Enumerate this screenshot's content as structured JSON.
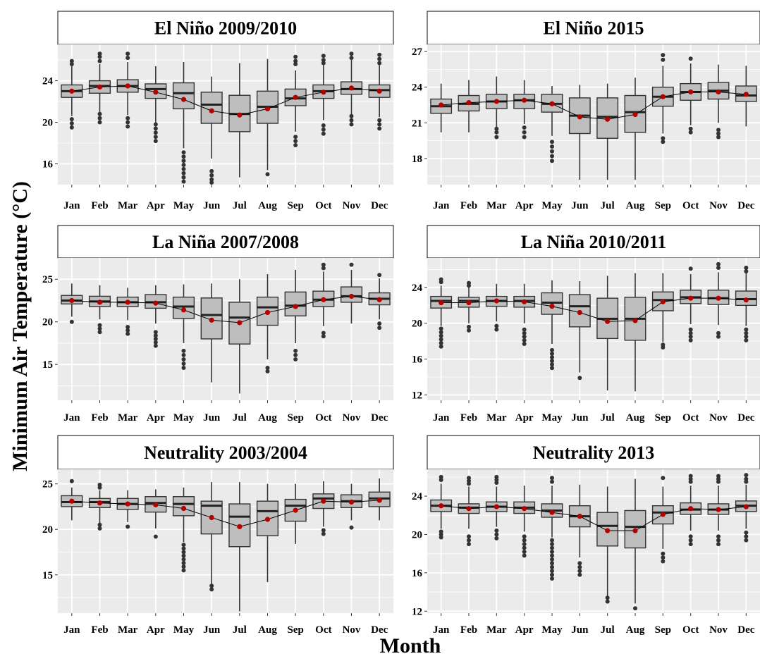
{
  "figure": {
    "ylabel": "Minimum Air Temperature (°C)",
    "xlabel": "Month",
    "colors": {
      "panel_bg": "#ebebeb",
      "grid": "#ffffff",
      "box_fill": "#bebebe",
      "box_line": "#333333",
      "mean_point": "#b30000",
      "mean_line": "#000000"
    }
  },
  "chart_data": [
    {
      "type": "box",
      "title": "El Niño 2009/2010",
      "categories": [
        "Jan",
        "Feb",
        "Mar",
        "Apr",
        "May",
        "Jun",
        "Jul",
        "Aug",
        "Sep",
        "Oct",
        "Nov",
        "Dec"
      ],
      "yticks": [
        16,
        20,
        24
      ],
      "ylim": [
        14,
        27.5
      ],
      "median": [
        23.0,
        23.5,
        23.5,
        23.2,
        22.8,
        21.7,
        20.8,
        21.5,
        22.3,
        23.0,
        23.2,
        23.1
      ],
      "q1": [
        22.4,
        22.8,
        22.9,
        22.3,
        21.3,
        19.9,
        19.1,
        19.9,
        21.6,
        22.3,
        22.7,
        22.4
      ],
      "q3": [
        23.6,
        24.0,
        24.1,
        23.7,
        23.8,
        22.9,
        22.6,
        23.0,
        23.2,
        23.6,
        23.9,
        23.6
      ],
      "whisker_low": [
        20.6,
        21.0,
        20.7,
        20.0,
        17.5,
        16.5,
        14.7,
        15.4,
        19.1,
        20.2,
        20.0,
        20.5
      ],
      "whisker_high": [
        25.4,
        25.6,
        25.8,
        25.4,
        25.8,
        24.4,
        25.7,
        26.1,
        25.0,
        25.5,
        26.0,
        25.5
      ],
      "mean": [
        23.0,
        23.4,
        23.5,
        22.9,
        22.2,
        21.1,
        20.7,
        21.3,
        22.4,
        22.9,
        23.3,
        23.0
      ],
      "outliers": [
        [
          19.5,
          19.9,
          20.3,
          25.6,
          25.9
        ],
        [
          20.0,
          20.4,
          20.8,
          25.9,
          26.3,
          26.6
        ],
        [
          19.6,
          20.0,
          20.4,
          26.2,
          26.6
        ],
        [
          18.2,
          18.6,
          19.0,
          19.4,
          19.8
        ],
        [
          14.3,
          14.7,
          15.1,
          15.5,
          15.9,
          16.3,
          16.7,
          17.1
        ],
        [
          14.2,
          14.5,
          14.9,
          15.3
        ],
        [],
        [
          15.0
        ],
        [
          17.8,
          18.2,
          18.6,
          25.6,
          25.9,
          26.3
        ],
        [
          18.9,
          19.3,
          19.7,
          25.7,
          26.0,
          26.4
        ],
        [
          19.8,
          20.2,
          20.6,
          26.2,
          26.6
        ],
        [
          19.4,
          19.8,
          20.2,
          25.7,
          26.1,
          26.5
        ]
      ]
    },
    {
      "type": "box",
      "title": "El Niño 2015",
      "categories": [
        "Jan",
        "Feb",
        "Mar",
        "Apr",
        "May",
        "Jun",
        "Jul",
        "Aug",
        "Sep",
        "Oct",
        "Nov",
        "Dec"
      ],
      "yticks": [
        18,
        21,
        24,
        27
      ],
      "ylim": [
        15.8,
        27.6
      ],
      "median": [
        22.4,
        22.6,
        22.8,
        22.9,
        22.6,
        21.6,
        21.5,
        21.9,
        23.2,
        23.6,
        23.7,
        23.3
      ],
      "q1": [
        21.8,
        22.0,
        22.2,
        22.2,
        21.9,
        20.1,
        19.7,
        20.2,
        22.4,
        22.9,
        23.0,
        22.8
      ],
      "q3": [
        23.0,
        23.3,
        23.4,
        23.4,
        23.4,
        23.1,
        23.1,
        23.3,
        24.0,
        24.3,
        24.4,
        24.1
      ],
      "whisker_low": [
        20.2,
        20.2,
        20.6,
        20.9,
        19.9,
        16.2,
        16.2,
        16.2,
        20.1,
        20.8,
        21.0,
        20.7
      ],
      "whisker_high": [
        24.3,
        24.6,
        24.9,
        24.6,
        24.1,
        24.2,
        24.3,
        24.8,
        25.8,
        26.0,
        25.9,
        25.8
      ],
      "mean": [
        22.5,
        22.7,
        22.8,
        22.9,
        22.6,
        21.5,
        21.3,
        21.7,
        23.2,
        23.6,
        23.6,
        23.4
      ],
      "outliers": [
        [],
        [],
        [
          19.8,
          20.2,
          20.5
        ],
        [
          19.8,
          20.2,
          20.6
        ],
        [
          17.8,
          18.2,
          18.6,
          19.0,
          19.4
        ],
        [],
        [],
        [],
        [
          19.4,
          19.7,
          26.3,
          26.7
        ],
        [
          20.2,
          20.5,
          26.4
        ],
        [
          19.8,
          20.1,
          20.4
        ],
        []
      ]
    },
    {
      "type": "box",
      "title": "La Niña 2007/2008",
      "categories": [
        "Jan",
        "Feb",
        "Mar",
        "Apr",
        "May",
        "Jun",
        "Jul",
        "Aug",
        "Sep",
        "Oct",
        "Nov",
        "Dec"
      ],
      "yticks": [
        15,
        20,
        25
      ],
      "ylim": [
        10.8,
        27.5
      ],
      "median": [
        22.5,
        22.4,
        22.3,
        22.3,
        21.8,
        20.8,
        20.5,
        21.7,
        21.9,
        22.6,
        23.0,
        22.7
      ],
      "q1": [
        22.1,
        21.8,
        21.8,
        21.6,
        20.4,
        18.0,
        17.4,
        19.6,
        20.7,
        21.8,
        22.3,
        22.0
      ],
      "q3": [
        23.1,
        23.0,
        22.9,
        23.2,
        22.9,
        22.8,
        22.3,
        22.9,
        23.5,
        23.6,
        24.1,
        23.4
      ],
      "whisker_low": [
        20.6,
        20.3,
        20.2,
        19.8,
        17.5,
        12.9,
        11.6,
        15.6,
        17.5,
        19.5,
        19.8,
        20.3
      ],
      "whisker_high": [
        24.5,
        24.3,
        24.0,
        24.3,
        24.4,
        24.5,
        25.0,
        25.6,
        26.1,
        25.9,
        26.1,
        25.1
      ],
      "mean": [
        22.5,
        22.3,
        22.3,
        22.2,
        21.4,
        20.2,
        19.9,
        21.1,
        21.8,
        22.6,
        23.0,
        22.6
      ],
      "outliers": [
        [
          20.0
        ],
        [
          18.8,
          19.2,
          19.6
        ],
        [
          18.6,
          19.0,
          19.4
        ],
        [
          17.2,
          17.6,
          18.0,
          18.4,
          18.8
        ],
        [
          14.6,
          15.1,
          15.6,
          16.1,
          16.6
        ],
        [],
        [],
        [
          14.2,
          14.6
        ],
        [
          15.6,
          16.1,
          16.6
        ],
        [
          18.3,
          18.7,
          26.3,
          26.7
        ],
        [
          26.7
        ],
        [
          19.3,
          19.8,
          25.5
        ]
      ]
    },
    {
      "type": "box",
      "title": "La Niña 2010/2011",
      "categories": [
        "Jan",
        "Feb",
        "Mar",
        "Apr",
        "May",
        "Jun",
        "Jul",
        "Aug",
        "Sep",
        "Oct",
        "Nov",
        "Dec"
      ],
      "yticks": [
        12,
        16,
        20,
        24
      ],
      "ylim": [
        11.4,
        27.3
      ],
      "median": [
        22.5,
        22.5,
        22.5,
        22.5,
        22.3,
        21.9,
        20.5,
        20.5,
        22.6,
        22.9,
        22.8,
        22.7
      ],
      "q1": [
        21.7,
        21.8,
        21.9,
        21.8,
        21.0,
        19.6,
        18.3,
        18.1,
        21.4,
        22.2,
        22.1,
        22.0
      ],
      "q3": [
        23.0,
        22.9,
        23.0,
        23.0,
        23.4,
        23.2,
        22.8,
        22.9,
        23.5,
        23.7,
        23.7,
        23.6
      ],
      "whisker_low": [
        19.7,
        20.0,
        20.2,
        20.0,
        17.7,
        14.5,
        12.5,
        12.4,
        17.9,
        19.9,
        19.8,
        19.7
      ],
      "whisker_high": [
        24.2,
        24.0,
        24.4,
        24.4,
        24.8,
        24.7,
        25.3,
        25.6,
        25.6,
        25.5,
        25.7,
        25.6
      ],
      "mean": [
        22.3,
        22.3,
        22.5,
        22.4,
        21.9,
        21.2,
        20.2,
        20.3,
        22.4,
        22.8,
        22.8,
        22.6
      ],
      "outliers": [
        [
          17.4,
          17.8,
          18.2,
          18.6,
          19.0,
          19.4,
          24.6,
          24.9
        ],
        [
          19.2,
          19.6,
          24.2,
          24.5
        ],
        [
          19.3,
          19.7
        ],
        [
          17.7,
          18.1,
          18.5,
          18.9,
          19.3
        ],
        [
          15.0,
          15.4,
          15.8,
          16.2,
          16.6,
          17.0
        ],
        [
          13.9
        ],
        [],
        [],
        [
          17.3,
          17.6
        ],
        [
          18.1,
          18.5,
          18.9,
          19.3,
          26.1
        ],
        [
          18.5,
          18.9,
          26.2,
          26.6
        ],
        [
          18.1,
          18.5,
          18.9,
          19.3,
          25.8,
          26.2
        ]
      ]
    },
    {
      "type": "box",
      "title": "Neutrality 2003/2004",
      "categories": [
        "Jan",
        "Feb",
        "Mar",
        "Apr",
        "May",
        "Jun",
        "Jul",
        "Aug",
        "Sep",
        "Oct",
        "Nov",
        "Dec"
      ],
      "yticks": [
        15,
        20,
        25
      ],
      "ylim": [
        10.8,
        26.6
      ],
      "median": [
        23.0,
        23.0,
        22.8,
        22.9,
        22.8,
        22.6,
        21.4,
        22.0,
        22.6,
        23.4,
        23.1,
        23.4
      ],
      "q1": [
        22.5,
        22.4,
        22.2,
        21.9,
        21.5,
        19.5,
        18.1,
        19.3,
        20.9,
        22.3,
        22.4,
        22.5
      ],
      "q3": [
        23.7,
        23.4,
        23.4,
        23.6,
        23.6,
        23.1,
        22.8,
        23.1,
        23.3,
        23.9,
        23.8,
        24.1
      ],
      "whisker_low": [
        21.0,
        20.7,
        20.8,
        20.1,
        18.6,
        14.0,
        11.0,
        14.2,
        18.4,
        20.3,
        21.0,
        21.0
      ],
      "whisker_high": [
        24.6,
        24.3,
        24.3,
        24.4,
        24.6,
        25.2,
        25.2,
        25.0,
        25.0,
        25.3,
        25.0,
        25.6
      ],
      "mean": [
        23.1,
        22.9,
        22.8,
        22.7,
        22.3,
        21.3,
        20.3,
        21.1,
        22.1,
        23.1,
        23.0,
        23.2
      ],
      "outliers": [
        [
          25.3
        ],
        [
          20.1,
          20.5,
          24.6,
          24.9
        ],
        [
          20.3
        ],
        [
          19.2
        ],
        [
          15.5,
          15.9,
          16.3,
          16.7,
          17.1,
          17.5,
          17.9,
          18.3
        ],
        [
          13.4,
          13.8
        ],
        [],
        [],
        [],
        [
          19.5,
          19.9
        ],
        [
          20.2
        ],
        []
      ]
    },
    {
      "type": "box",
      "title": "Neutrality 2013",
      "categories": [
        "Jan",
        "Feb",
        "Mar",
        "Apr",
        "May",
        "Jun",
        "Jul",
        "Aug",
        "Sep",
        "Oct",
        "Nov",
        "Dec"
      ],
      "yticks": [
        12,
        16,
        20,
        24
      ],
      "ylim": [
        11.8,
        26.8
      ],
      "median": [
        23.0,
        22.8,
        22.9,
        22.8,
        22.5,
        21.9,
        20.9,
        20.8,
        22.3,
        22.6,
        22.6,
        23.0
      ],
      "q1": [
        22.4,
        22.2,
        22.4,
        22.2,
        21.8,
        20.8,
        18.8,
        18.6,
        21.1,
        22.1,
        22.1,
        22.4
      ],
      "q3": [
        23.6,
        23.2,
        23.4,
        23.4,
        23.2,
        23.0,
        22.3,
        22.5,
        23.0,
        23.3,
        23.2,
        23.5
      ],
      "whisker_low": [
        20.6,
        20.6,
        20.8,
        20.3,
        19.7,
        17.6,
        13.6,
        12.8,
        18.5,
        20.4,
        20.4,
        20.6
      ],
      "whisker_high": [
        25.3,
        25.0,
        25.0,
        25.1,
        25.1,
        25.2,
        25.0,
        25.8,
        25.0,
        25.1,
        25.1,
        25.2
      ],
      "mean": [
        23.0,
        22.7,
        22.9,
        22.7,
        22.3,
        21.9,
        20.4,
        20.4,
        22.1,
        22.7,
        22.6,
        22.9
      ],
      "outliers": [
        [
          19.7,
          20.0,
          20.3,
          25.7,
          26.0
        ],
        [
          19.0,
          19.4,
          19.8,
          25.3,
          25.6,
          25.9
        ],
        [
          19.6,
          20.0,
          20.4,
          25.4,
          25.7,
          26.0
        ],
        [
          17.8,
          18.2,
          18.6,
          19.0,
          19.4,
          19.8
        ],
        [
          15.4,
          15.8,
          16.2,
          16.6,
          17.0,
          17.4,
          17.8,
          18.2,
          18.6,
          19.0,
          19.4,
          25.5,
          25.9
        ],
        [
          15.8,
          16.2,
          16.6,
          17.0
        ],
        [
          13.0,
          13.4
        ],
        [
          12.3
        ],
        [
          17.2,
          17.6,
          18.0,
          25.9
        ],
        [
          19.0,
          19.4,
          19.8,
          25.5,
          25.8,
          26.1
        ],
        [
          19.0,
          19.4,
          19.8,
          25.5,
          25.8,
          26.1
        ],
        [
          19.4,
          19.8,
          20.2,
          25.5,
          25.8,
          26.2
        ]
      ]
    }
  ]
}
